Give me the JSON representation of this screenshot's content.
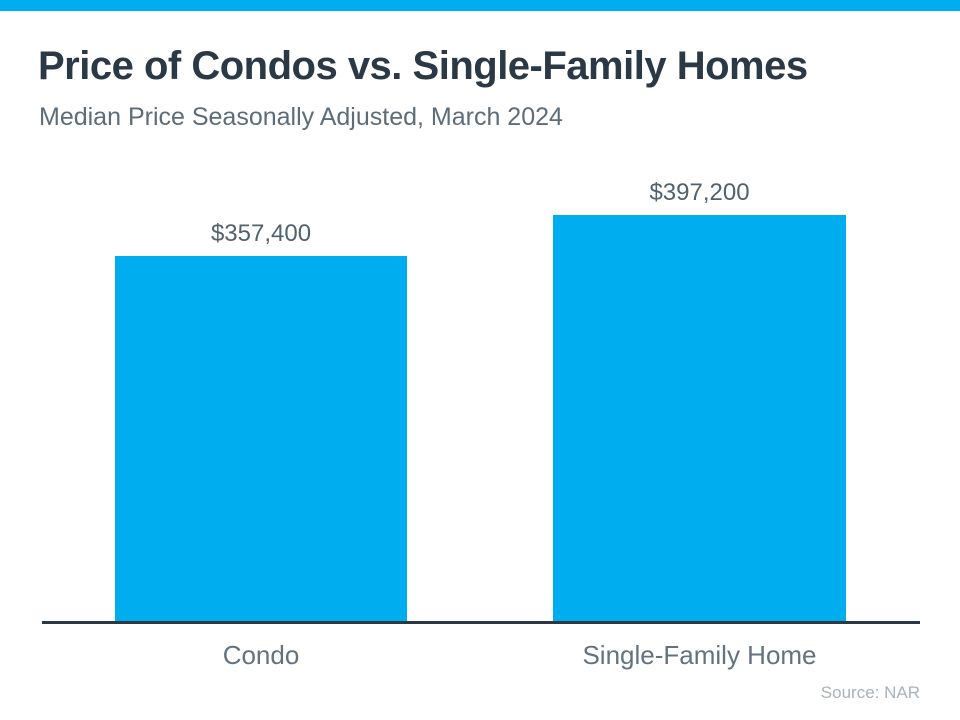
{
  "header": {
    "title": "Price of Condos vs. Single-Family Homes",
    "subtitle": "Median Price Seasonally Adjusted, March 2024"
  },
  "chart_data": {
    "type": "bar",
    "categories": [
      "Condo",
      "Single-Family Home"
    ],
    "values": [
      357400,
      397200
    ],
    "value_labels": [
      "$357,400",
      "$397,200"
    ],
    "title": "Price of Condos vs. Single-Family Homes",
    "subtitle": "Median Price Seasonally Adjusted, March 2024",
    "xlabel": "",
    "ylabel": "",
    "ylim": [
      0,
      400000
    ],
    "grid": false,
    "legend": false,
    "bar_color": "#00AEEF",
    "axis_line_color": "#2E3842",
    "source": "Source: NAR"
  },
  "footer": {
    "source": "Source: NAR"
  },
  "colors": {
    "accent_cyan": "#00AEEF",
    "title_text": "#2B3845",
    "subtitle_text": "#5D6C78",
    "value_label_text": "#51616D",
    "category_label_text": "#63727F",
    "axis_line": "#2E3842",
    "source_text": "#A8B2BA",
    "background": "#FFFFFF"
  }
}
